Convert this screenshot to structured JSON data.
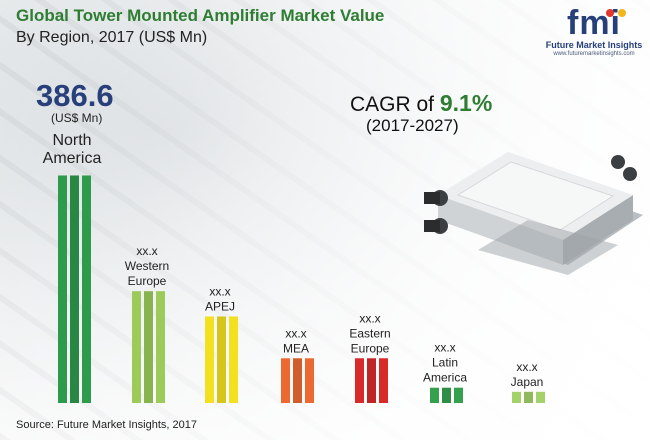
{
  "chart_data": {
    "type": "bar",
    "title": "Global Tower Mounted Amplifier Market Value",
    "subtitle": "By Region, 2017 (US$ Mn)",
    "categories": [
      {
        "name": "North America",
        "value": 386.6,
        "value_label": "386.6",
        "unit_label": "(US$ Mn)",
        "color": "#2e9a4c"
      },
      {
        "name": "Western Europe",
        "value": 190,
        "value_label": "xx.x",
        "color": "#9ccb5a"
      },
      {
        "name": "APEJ",
        "value": 147,
        "value_label": "xx.x",
        "color": "#f3e01e"
      },
      {
        "name": "MEA",
        "value": 76,
        "value_label": "xx.x",
        "color": "#ec6a32"
      },
      {
        "name": "Eastern Europe",
        "value": 76,
        "value_label": "xx.x",
        "color": "#d92a2a"
      },
      {
        "name": "Latin America",
        "value": 26,
        "value_label": "xx.x",
        "color": "#35a04e"
      },
      {
        "name": "Japan",
        "value": 19,
        "value_label": "xx.x",
        "color": "#a4d26a"
      }
    ],
    "region_lines": [
      [
        "North",
        "America"
      ],
      [
        "Western",
        "Europe"
      ],
      [
        "APEJ"
      ],
      [
        "MEA"
      ],
      [
        "Eastern",
        "Europe"
      ],
      [
        "Latin",
        "America"
      ],
      [
        "Japan"
      ]
    ]
  },
  "cagr": {
    "prefix": "CAGR of ",
    "value": "9.1%",
    "period": "(2017-2027)"
  },
  "source": "Source: Future Market Insights, 2017",
  "logo": {
    "text": "fmi",
    "line1": "Future Market Insights",
    "line2": "www.futuremarketinsights.com",
    "colors": [
      "#e2382d",
      "#f2b51a",
      "#36a853"
    ]
  },
  "product": {
    "body_color": "#e8eaeb"
  }
}
